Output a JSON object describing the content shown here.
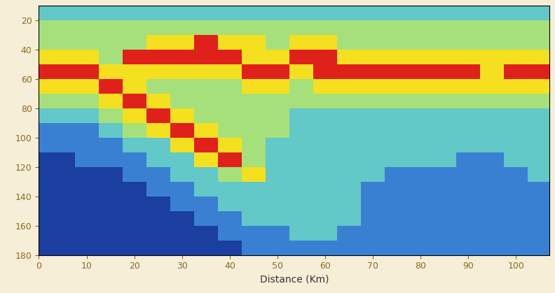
{
  "chart_data": {
    "type": "heatmap",
    "x_label": "Distance (Km)",
    "x": [
      0,
      5,
      10,
      15,
      20,
      25,
      30,
      35,
      40,
      45,
      50,
      55,
      60,
      65,
      70,
      75,
      80,
      85,
      90,
      95,
      100,
      105
    ],
    "y": [
      15,
      25,
      35,
      45,
      55,
      65,
      75,
      85,
      95,
      105,
      115,
      125,
      135,
      145,
      155,
      165,
      175
    ],
    "cells": [
      [
        2,
        2,
        2,
        2,
        2,
        2,
        2,
        2,
        2,
        2,
        2,
        2,
        2,
        2,
        2,
        2,
        2,
        2,
        2,
        2,
        2,
        2
      ],
      [
        3,
        3,
        3,
        3,
        3,
        3,
        3,
        3,
        3,
        3,
        3,
        3,
        3,
        3,
        3,
        3,
        3,
        3,
        3,
        3,
        3,
        3
      ],
      [
        3,
        3,
        3,
        3,
        3,
        4,
        4,
        5,
        4,
        4,
        3,
        4,
        4,
        3,
        3,
        3,
        3,
        3,
        3,
        3,
        3,
        3
      ],
      [
        4,
        4,
        4,
        3,
        5,
        5,
        5,
        5,
        5,
        4,
        4,
        5,
        5,
        4,
        4,
        4,
        4,
        4,
        4,
        4,
        4,
        4
      ],
      [
        5,
        5,
        5,
        4,
        4,
        4,
        4,
        4,
        4,
        5,
        5,
        4,
        5,
        5,
        5,
        5,
        5,
        5,
        5,
        4,
        5,
        5
      ],
      [
        4,
        4,
        4,
        5,
        4,
        3,
        3,
        3,
        3,
        4,
        4,
        3,
        4,
        4,
        4,
        4,
        4,
        4,
        4,
        4,
        4,
        4
      ],
      [
        3,
        3,
        3,
        4,
        5,
        4,
        3,
        3,
        3,
        3,
        3,
        3,
        3,
        3,
        3,
        3,
        3,
        3,
        3,
        3,
        3,
        3
      ],
      [
        2,
        2,
        2,
        3,
        4,
        5,
        4,
        3,
        3,
        3,
        3,
        2,
        2,
        2,
        2,
        2,
        2,
        2,
        2,
        2,
        2,
        2
      ],
      [
        1,
        1,
        1,
        2,
        3,
        4,
        5,
        4,
        3,
        3,
        3,
        2,
        2,
        2,
        2,
        2,
        2,
        2,
        2,
        2,
        2,
        2
      ],
      [
        1,
        1,
        1,
        1,
        2,
        2,
        4,
        5,
        4,
        3,
        2,
        2,
        2,
        2,
        2,
        2,
        2,
        2,
        2,
        2,
        2,
        2
      ],
      [
        0,
        0,
        1,
        1,
        1,
        2,
        2,
        4,
        5,
        3,
        2,
        2,
        2,
        2,
        2,
        2,
        2,
        2,
        1,
        1,
        2,
        2
      ],
      [
        0,
        0,
        0,
        0,
        1,
        1,
        2,
        2,
        3,
        4,
        2,
        2,
        2,
        2,
        2,
        1,
        1,
        1,
        1,
        1,
        1,
        2
      ],
      [
        0,
        0,
        0,
        0,
        0,
        1,
        1,
        2,
        2,
        2,
        2,
        2,
        2,
        2,
        1,
        1,
        1,
        1,
        1,
        1,
        1,
        1
      ],
      [
        0,
        0,
        0,
        0,
        0,
        0,
        1,
        1,
        2,
        2,
        2,
        2,
        2,
        2,
        1,
        1,
        1,
        1,
        1,
        1,
        1,
        1
      ],
      [
        0,
        0,
        0,
        0,
        0,
        0,
        0,
        1,
        1,
        2,
        2,
        2,
        2,
        2,
        1,
        1,
        1,
        1,
        1,
        1,
        1,
        1
      ],
      [
        0,
        0,
        0,
        0,
        0,
        0,
        0,
        0,
        1,
        1,
        1,
        2,
        2,
        1,
        1,
        1,
        1,
        1,
        1,
        1,
        1,
        1
      ],
      [
        0,
        0,
        0,
        0,
        0,
        0,
        0,
        0,
        0,
        1,
        1,
        1,
        1,
        1,
        1,
        1,
        1,
        1,
        1,
        1,
        1,
        1
      ]
    ],
    "xlim": [
      0,
      107
    ],
    "xticks": [
      0,
      10,
      20,
      30,
      40,
      50,
      60,
      70,
      80,
      90,
      100
    ],
    "ylim": [
      180,
      10
    ],
    "yticks": [
      20,
      40,
      60,
      80,
      100,
      120,
      140,
      160,
      180
    ]
  }
}
